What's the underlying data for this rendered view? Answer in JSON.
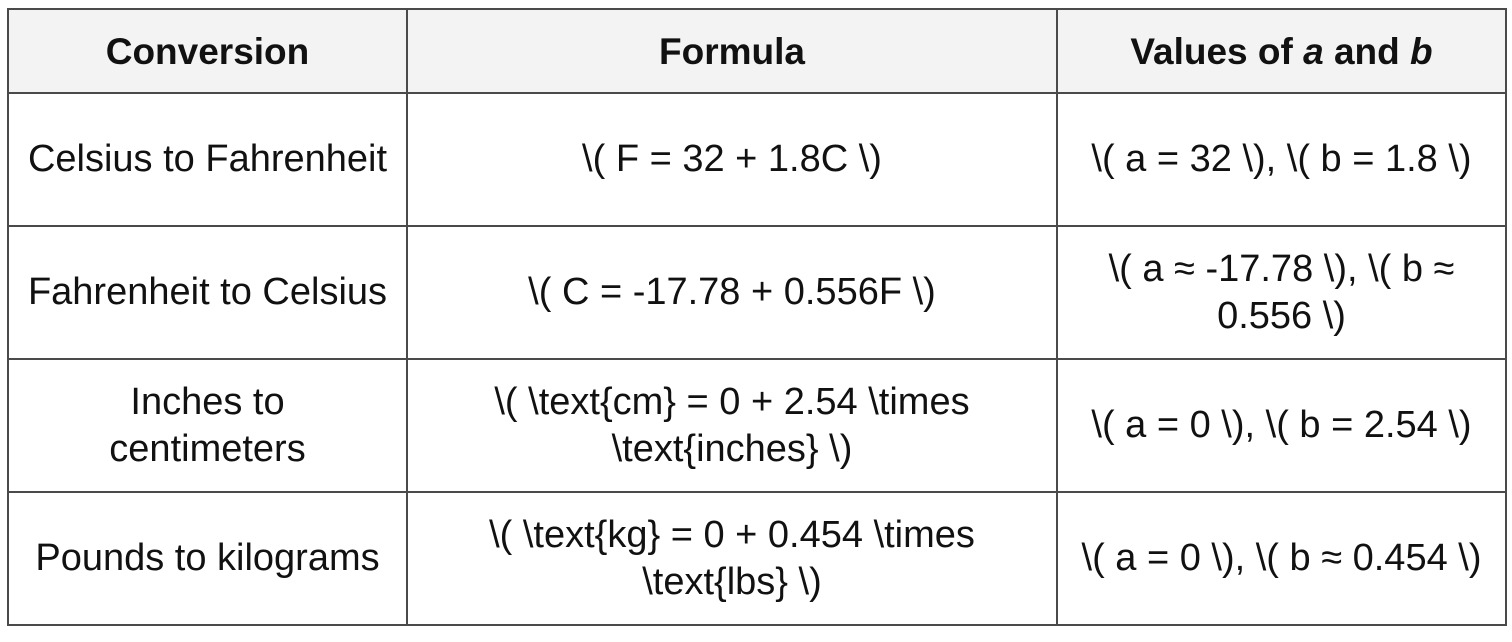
{
  "table": {
    "headers": {
      "conversion": "Conversion",
      "formula": "Formula",
      "values_prefix": "Values of ",
      "var_a": "a",
      "values_and": " and ",
      "var_b": "b"
    },
    "rows": [
      {
        "conversion": "Celsius to Fahrenheit",
        "formula": "\\( F = 32 + 1.8C \\)",
        "values": "\\( a = 32 \\), \\( b = 1.8 \\)"
      },
      {
        "conversion": "Fahrenheit to Celsius",
        "formula": "\\( C = -17.78 + 0.556F \\)",
        "values": "\\( a ≈ -17.78 \\), \\( b ≈ 0.556 \\)"
      },
      {
        "conversion": "Inches to centimeters",
        "formula": "\\( \\text{cm} = 0 + 2.54 \\times \\text{inches} \\)",
        "values": "\\( a = 0 \\), \\( b = 2.54 \\)"
      },
      {
        "conversion": "Pounds to kilograms",
        "formula": "\\( \\text{kg} = 0 + 0.454 \\times \\text{lbs} \\)",
        "values": "\\( a = 0 \\), \\( b ≈ 0.454 \\)"
      }
    ]
  }
}
